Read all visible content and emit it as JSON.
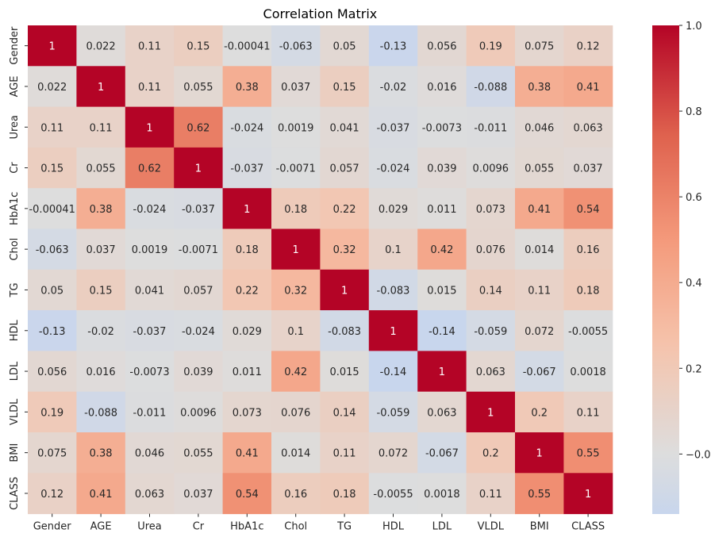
{
  "chart_data": {
    "type": "heatmap",
    "title": "Correlation Matrix",
    "xlabel": "",
    "ylabel": "",
    "x_categories": [
      "Gender",
      "AGE",
      "Urea",
      "Cr",
      "HbA1c",
      "Chol",
      "TG",
      "HDL",
      "LDL",
      "VLDL",
      "BMI",
      "CLASS"
    ],
    "y_categories": [
      "Gender",
      "AGE",
      "Urea",
      "Cr",
      "HbA1c",
      "Chol",
      "TG",
      "HDL",
      "LDL",
      "VLDL",
      "BMI",
      "CLASS"
    ],
    "values": [
      [
        1,
        0.022,
        0.11,
        0.15,
        -0.00041,
        -0.063,
        0.05,
        -0.13,
        0.056,
        0.19,
        0.075,
        0.12
      ],
      [
        0.022,
        1,
        0.11,
        0.055,
        0.38,
        0.037,
        0.15,
        -0.02,
        0.016,
        -0.088,
        0.38,
        0.41
      ],
      [
        0.11,
        0.11,
        1,
        0.62,
        -0.024,
        0.0019,
        0.041,
        -0.037,
        -0.0073,
        -0.011,
        0.046,
        0.063
      ],
      [
        0.15,
        0.055,
        0.62,
        1,
        -0.037,
        -0.0071,
        0.057,
        -0.024,
        0.039,
        0.0096,
        0.055,
        0.037
      ],
      [
        -0.00041,
        0.38,
        -0.024,
        -0.037,
        1,
        0.18,
        0.22,
        0.029,
        0.011,
        0.073,
        0.41,
        0.54
      ],
      [
        -0.063,
        0.037,
        0.0019,
        -0.0071,
        0.18,
        1,
        0.32,
        0.1,
        0.42,
        0.076,
        0.014,
        0.16
      ],
      [
        0.05,
        0.15,
        0.041,
        0.057,
        0.22,
        0.32,
        1,
        -0.083,
        0.015,
        0.14,
        0.11,
        0.18
      ],
      [
        -0.13,
        -0.02,
        -0.037,
        -0.024,
        0.029,
        0.1,
        -0.083,
        1,
        -0.14,
        -0.059,
        0.072,
        -0.0055
      ],
      [
        0.056,
        0.016,
        -0.0073,
        0.039,
        0.011,
        0.42,
        0.015,
        -0.14,
        1,
        0.063,
        -0.067,
        0.0018
      ],
      [
        0.19,
        -0.088,
        -0.011,
        0.0096,
        0.073,
        0.076,
        0.14,
        -0.059,
        0.063,
        1,
        0.2,
        0.11
      ],
      [
        0.075,
        0.38,
        0.046,
        0.055,
        0.41,
        0.014,
        0.11,
        0.072,
        -0.067,
        0.2,
        1,
        0.55
      ],
      [
        0.12,
        0.41,
        0.063,
        0.037,
        0.54,
        0.16,
        0.18,
        -0.0055,
        0.0018,
        0.11,
        0.55,
        1
      ]
    ],
    "colorbar": {
      "ticks": [
        1.0,
        0.8,
        0.6,
        0.4,
        0.2,
        -0.0
      ],
      "tick_labels": [
        "1.0",
        "0.8",
        "0.6",
        "0.4",
        "0.2",
        "−0.0"
      ],
      "range": [
        -0.14,
        1
      ],
      "center": 0,
      "colormap": "coolwarm"
    },
    "grid": false,
    "legend": "colorbar-right"
  }
}
